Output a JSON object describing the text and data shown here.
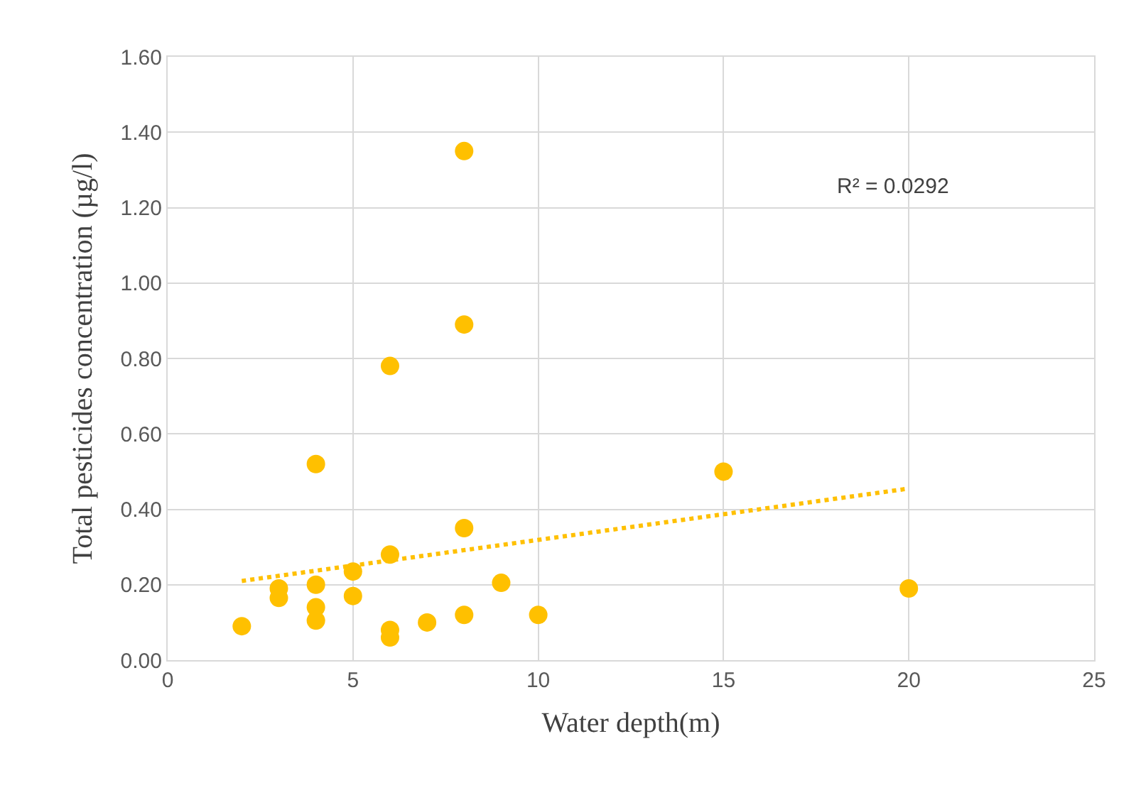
{
  "chart_data": {
    "type": "scatter",
    "xlabel": "Water depth(m)",
    "ylabel": "Total pesticides concentration (µg/l)",
    "annotations": [
      "R² = 0.0292"
    ],
    "xlim": [
      0,
      25
    ],
    "xticks": [
      0,
      5,
      10,
      15,
      20,
      25
    ],
    "ylim": [
      0,
      1.6
    ],
    "yticks": [
      {
        "value": 0,
        "label": "0.00"
      },
      {
        "value": 0.2,
        "label": "0.20"
      },
      {
        "value": 0.4,
        "label": "0.40"
      },
      {
        "value": 0.6,
        "label": "0.60"
      },
      {
        "value": 0.8,
        "label": "0.80"
      },
      {
        "value": 1,
        "label": "1.00"
      },
      {
        "value": 1.2,
        "label": "1.20"
      },
      {
        "value": 1.4,
        "label": "1.40"
      },
      {
        "value": 1.6,
        "label": "1.60"
      }
    ],
    "grid": true,
    "legend": false,
    "marker": "circle",
    "series": [
      {
        "color": "#ffc000",
        "x": [
          2,
          3,
          3,
          4,
          4,
          4,
          4,
          5,
          5,
          6,
          6,
          6,
          6,
          7,
          8,
          8,
          8,
          8,
          9,
          10,
          15,
          20
        ],
        "values": [
          0.09,
          0.19,
          0.165,
          0.52,
          0.2,
          0.14,
          0.105,
          0.235,
          0.17,
          0.78,
          0.28,
          0.08,
          0.06,
          0.1,
          1.35,
          0.89,
          0.35,
          0.12,
          0.205,
          0.12,
          0.5,
          0.19
        ]
      },
      {
        "type": "line",
        "marker": "none",
        "color": "#ffc000",
        "line_style": "dotted",
        "x": [
          2,
          20
        ],
        "values": [
          0.21,
          0.455
        ]
      }
    ]
  }
}
